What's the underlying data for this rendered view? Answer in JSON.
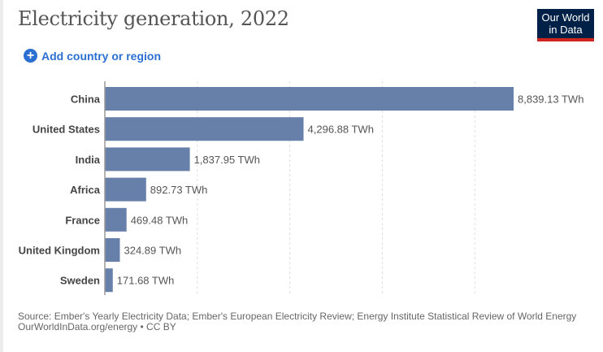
{
  "header": {
    "title": "Electricity generation, 2022",
    "logo_line1": "Our World",
    "logo_line2": "in Data",
    "add_label": "Add country or region"
  },
  "chart_data": {
    "type": "bar",
    "orientation": "horizontal",
    "title": "Electricity generation, 2022",
    "unit": "TWh",
    "categories": [
      "China",
      "United States",
      "India",
      "Africa",
      "France",
      "United Kingdom",
      "Sweden"
    ],
    "values": [
      8839.13,
      4296.88,
      1837.95,
      892.73,
      469.48,
      324.89,
      171.68
    ],
    "labels": [
      "8,839.13 TWh",
      "4,296.88 TWh",
      "1,837.95 TWh",
      "892.73 TWh",
      "469.48 TWh",
      "324.89 TWh",
      "171.68 TWh"
    ],
    "xlim": [
      0,
      10000
    ],
    "gridlines": [
      2000,
      4000,
      6000,
      8000
    ],
    "bar_color": "#6680aa"
  },
  "footer": {
    "source": "Source: Ember's Yearly Electricity Data; Ember's European Electricity Review; Energy Institute Statistical Review of World Energy",
    "credit": "OurWorldInData.org/energy • CC BY"
  }
}
